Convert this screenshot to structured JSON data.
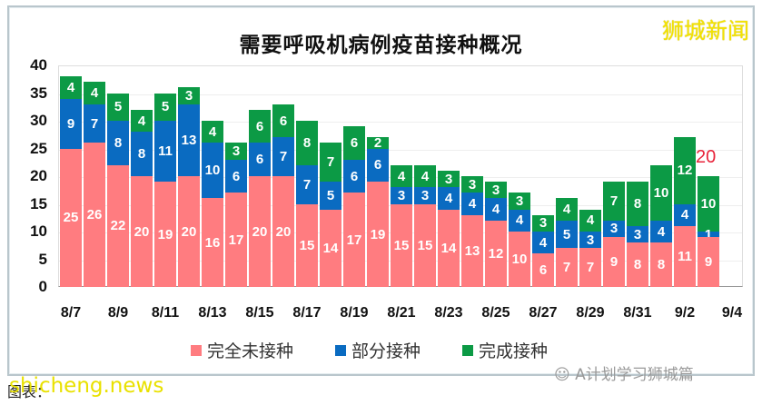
{
  "brand": "狮城新闻",
  "footer": {
    "source_label": "图表：",
    "watermark": "shicheng.news",
    "wechat": "A计划学习狮城篇"
  },
  "colors": {
    "unvaccinated": "#ff7c80",
    "partial": "#0a6bc1",
    "full": "#0c9a45",
    "annotation": "#e8233a"
  },
  "chart_data": {
    "type": "bar",
    "stacked": true,
    "title": "需要呼吸机病例疫苗接种概况",
    "xlabel": "",
    "ylabel": "",
    "ylim": [
      0,
      40
    ],
    "yticks": [
      0,
      5,
      10,
      15,
      20,
      25,
      30,
      35,
      40
    ],
    "grid": true,
    "legend_position": "bottom",
    "categories": [
      "8/7",
      "8/8",
      "8/9",
      "8/10",
      "8/11",
      "8/12",
      "8/13",
      "8/14",
      "8/15",
      "8/16",
      "8/17",
      "8/18",
      "8/19",
      "8/20",
      "8/21",
      "8/22",
      "8/23",
      "8/24",
      "8/25",
      "8/26",
      "8/27",
      "8/28",
      "8/29",
      "8/30",
      "8/31",
      "9/1",
      "9/2",
      "9/3"
    ],
    "xtick_labels": [
      "8/7",
      "8/9",
      "8/11",
      "8/13",
      "8/15",
      "8/17",
      "8/19",
      "8/21",
      "8/23",
      "8/25",
      "8/27",
      "8/29",
      "8/31",
      "9/2",
      "9/4"
    ],
    "series": [
      {
        "name": "完全未接种",
        "key": "un",
        "values": [
          25,
          26,
          22,
          20,
          19,
          20,
          16,
          17,
          20,
          20,
          15,
          14,
          17,
          19,
          15,
          15,
          14,
          13,
          12,
          10,
          6,
          7,
          7,
          9,
          8,
          8,
          11,
          9
        ]
      },
      {
        "name": "部分接种",
        "key": "pa",
        "values": [
          9,
          7,
          8,
          8,
          11,
          13,
          10,
          6,
          6,
          7,
          7,
          5,
          6,
          6,
          3,
          3,
          4,
          4,
          4,
          4,
          4,
          5,
          3,
          3,
          3,
          4,
          4,
          1
        ]
      },
      {
        "name": "完成接种",
        "key": "fu",
        "values": [
          4,
          4,
          5,
          4,
          5,
          3,
          4,
          3,
          6,
          6,
          8,
          7,
          6,
          2,
          4,
          4,
          3,
          3,
          3,
          3,
          3,
          4,
          4,
          7,
          8,
          10,
          12,
          10
        ]
      }
    ],
    "annotations": [
      {
        "category": "9/3",
        "text": "20"
      }
    ]
  }
}
